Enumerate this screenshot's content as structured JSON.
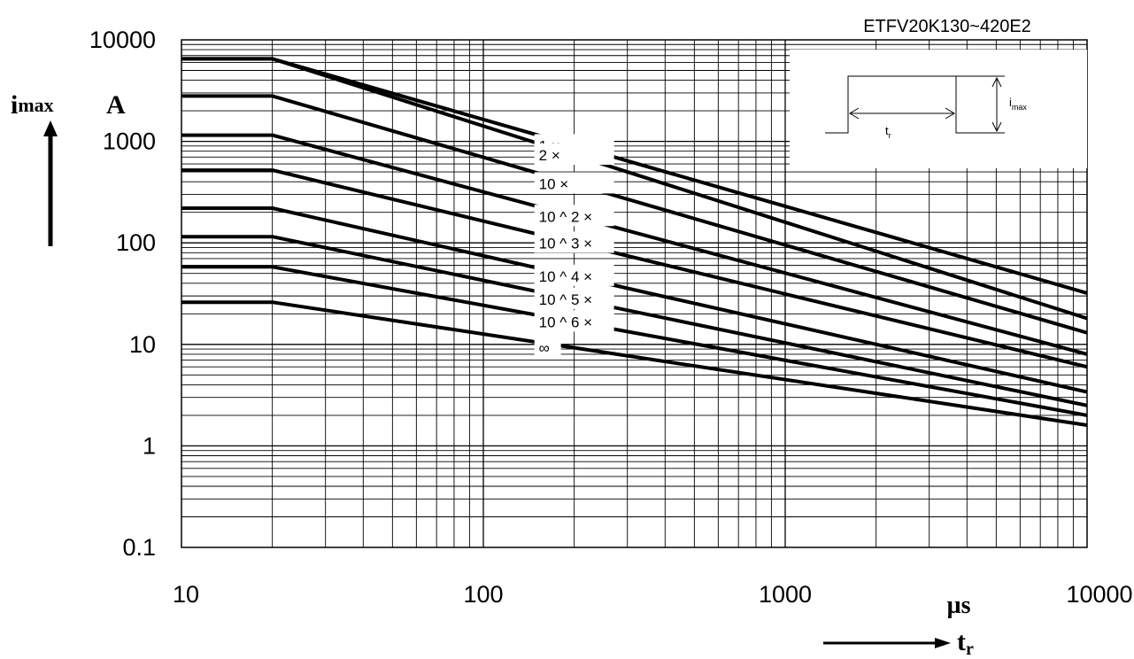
{
  "chart_data": {
    "type": "line",
    "title": "ETFV20K130~420E2",
    "x_scale": "log",
    "y_scale": "log",
    "xlim": [
      10,
      10000
    ],
    "ylim": [
      0.1,
      10000
    ],
    "x_ticks": [
      "10",
      "100",
      "1000",
      "10000"
    ],
    "y_ticks": [
      "10000",
      "1000",
      "100",
      "10",
      "1",
      "0.1"
    ],
    "xlabel_symbol": "t",
    "xlabel_subscript": "r",
    "xlabel_unit": "µs",
    "ylabel_symbol": "i",
    "ylabel_subscript": "max",
    "ylabel_unit": "A",
    "grid": true,
    "inset": {
      "t_label": "t",
      "t_sub": "r",
      "i_label": "i",
      "i_sub": "max"
    },
    "series": [
      {
        "name": "1 ×",
        "x": [
          10,
          20,
          10000
        ],
        "y": [
          6500,
          6500,
          32
        ]
      },
      {
        "name": "2 ×",
        "x": [
          10,
          20,
          10000
        ],
        "y": [
          6500,
          6500,
          18
        ]
      },
      {
        "name": "10 ×",
        "x": [
          10,
          20,
          10000
        ],
        "y": [
          2800,
          2800,
          13
        ]
      },
      {
        "name": "10 ^ 2 ×",
        "x": [
          10,
          20,
          10000
        ],
        "y": [
          1150,
          1150,
          8
        ]
      },
      {
        "name": "10 ^ 3 ×",
        "x": [
          10,
          20,
          10000
        ],
        "y": [
          520,
          520,
          6
        ]
      },
      {
        "name": "10 ^ 4 ×",
        "x": [
          10,
          20,
          10000
        ],
        "y": [
          220,
          220,
          3.4
        ]
      },
      {
        "name": "10 ^ 5 ×",
        "x": [
          10,
          20,
          10000
        ],
        "y": [
          115,
          115,
          2.5
        ]
      },
      {
        "name": "10 ^ 6 ×",
        "x": [
          10,
          20,
          10000
        ],
        "y": [
          58,
          58,
          2.0
        ]
      },
      {
        "name": "∞",
        "x": [
          10,
          20,
          10000
        ],
        "y": [
          26,
          26,
          1.6
        ]
      }
    ]
  }
}
